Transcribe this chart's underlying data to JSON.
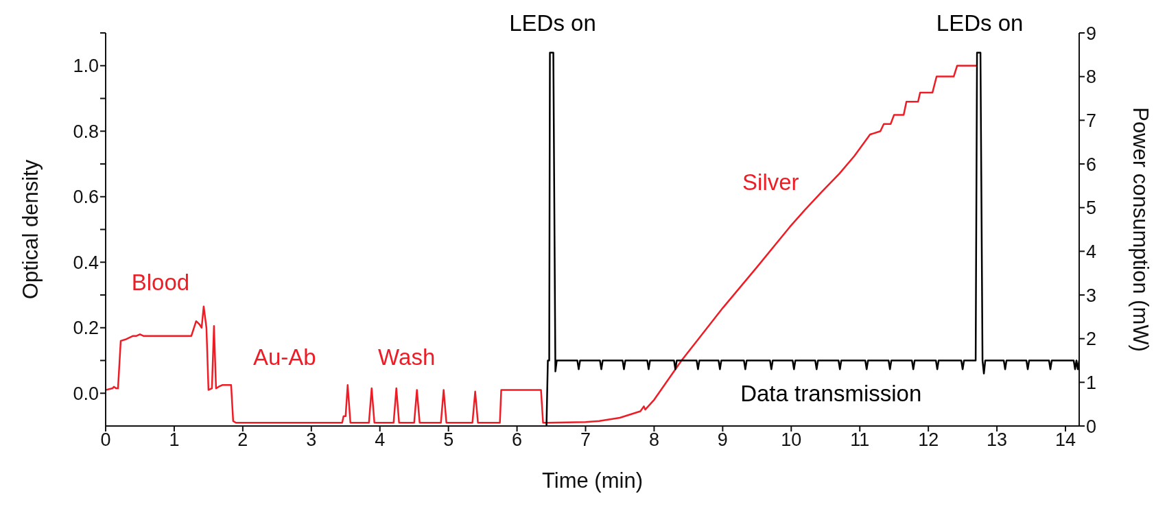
{
  "chart_data": {
    "type": "line",
    "xlabel": "Time (min)",
    "ylabel": "Optical density",
    "y2label": "Power consumption (mW)",
    "xlim": [
      0,
      14.2
    ],
    "xticks": [
      0,
      1,
      2,
      3,
      4,
      5,
      6,
      7,
      8,
      9,
      10,
      11,
      12,
      13,
      14
    ],
    "ylim": [
      -0.1,
      1.1
    ],
    "yticks": [
      {
        "value": 0,
        "label": "0.0"
      },
      {
        "value": 0.1,
        "label": null
      },
      0.2,
      {
        "value": 0.3,
        "label": null
      },
      0.4,
      {
        "value": 0.5,
        "label": null
      },
      0.6,
      {
        "value": 0.7,
        "label": null
      },
      0.8,
      {
        "value": 0.9,
        "label": null
      },
      {
        "value": 1,
        "label": "1.0"
      },
      {
        "value": 1.1,
        "label": null
      }
    ],
    "y2lim": [
      0,
      9
    ],
    "y2ticks": [
      0,
      1,
      2,
      3,
      4,
      5,
      6,
      7,
      8,
      9
    ],
    "series": [
      {
        "color": "#ee1c25",
        "x": [
          0,
          0.1,
          0.12,
          0.15,
          0.18,
          0.22,
          0.3,
          0.4,
          0.45,
          0.5,
          0.55,
          1.2,
          1.25,
          1.32,
          1.37,
          1.4,
          1.43,
          1.47,
          1.5,
          1.55,
          1.58,
          1.61,
          1.65,
          1.7,
          1.83,
          1.86,
          1.9,
          3.45,
          3.47,
          3.5,
          3.53,
          3.57,
          3.84,
          3.88,
          3.92,
          4.2,
          4.24,
          4.28,
          4.5,
          4.54,
          4.58,
          4.89,
          4.93,
          4.97,
          5.35,
          5.39,
          5.43,
          5.75,
          5.77,
          6.35,
          6.38,
          6.45,
          7,
          7.2,
          7.5,
          7.8,
          7.85,
          7.87,
          8,
          8.4,
          9,
          9.5,
          9.98,
          10.2,
          10.45,
          10.7,
          10.92,
          11.15,
          11.3,
          11.35,
          11.45,
          11.5,
          11.64,
          11.68,
          11.85,
          11.88,
          12.06,
          12.12,
          12.37,
          12.42,
          12.7
        ],
        "values": [
          0.01,
          0.015,
          0.02,
          0.015,
          0.015,
          0.16,
          0.165,
          0.175,
          0.175,
          0.18,
          0.175,
          0.175,
          0.175,
          0.22,
          0.21,
          0.2,
          0.265,
          0.2,
          0.01,
          0.015,
          0.205,
          0.015,
          0.02,
          0.025,
          0.025,
          -0.085,
          -0.09,
          -0.09,
          -0.07,
          -0.07,
          0.025,
          -0.09,
          -0.09,
          0.015,
          -0.09,
          -0.09,
          0.015,
          -0.09,
          -0.09,
          0.01,
          -0.09,
          -0.09,
          0.01,
          -0.09,
          -0.09,
          0.005,
          -0.09,
          -0.09,
          0.01,
          0.01,
          -0.09,
          -0.09,
          -0.088,
          -0.085,
          -0.075,
          -0.055,
          -0.04,
          -0.05,
          -0.02,
          0.1,
          0.26,
          0.385,
          0.508,
          0.56,
          0.616,
          0.67,
          0.724,
          0.79,
          0.8,
          0.822,
          0.822,
          0.85,
          0.85,
          0.89,
          0.89,
          0.918,
          0.918,
          0.967,
          0.967,
          1.0,
          1.0
        ]
      },
      {
        "color": "#000000",
        "axis": "y2",
        "x": [
          6.43,
          6.45,
          6.47,
          6.48,
          6.53,
          6.56,
          6.58,
          6.88,
          6.9,
          6.92,
          7.21,
          7.23,
          7.25,
          7.54,
          7.56,
          7.58,
          7.9,
          7.92,
          7.94,
          8.29,
          8.31,
          8.33,
          8.62,
          8.64,
          8.66,
          8.94,
          8.96,
          8.98,
          9.31,
          9.33,
          9.35,
          9.69,
          9.71,
          9.73,
          10.02,
          10.04,
          10.06,
          10.35,
          10.37,
          10.39,
          10.69,
          10.71,
          10.73,
          11.08,
          11.1,
          11.12,
          11.42,
          11.44,
          11.46,
          11.76,
          11.78,
          11.8,
          12.11,
          12.13,
          12.15,
          12.48,
          12.5,
          12.52,
          12.69,
          12.71,
          12.76,
          12.79,
          12.81,
          12.83,
          13.1,
          13.12,
          13.14,
          13.43,
          13.45,
          13.47,
          13.76,
          13.78,
          13.8,
          14.12,
          14.14,
          14.16,
          14.18,
          14.2
        ],
        "values": [
          0,
          1.5,
          1.5,
          8.55,
          8.55,
          1.25,
          1.5,
          1.5,
          1.3,
          1.5,
          1.5,
          1.3,
          1.5,
          1.5,
          1.3,
          1.5,
          1.5,
          1.3,
          1.5,
          1.5,
          1.3,
          1.5,
          1.5,
          1.3,
          1.5,
          1.5,
          1.3,
          1.5,
          1.5,
          1.3,
          1.5,
          1.5,
          1.3,
          1.5,
          1.5,
          1.3,
          1.5,
          1.5,
          1.3,
          1.5,
          1.5,
          1.3,
          1.5,
          1.5,
          1.3,
          1.5,
          1.5,
          1.3,
          1.5,
          1.5,
          1.3,
          1.5,
          1.5,
          1.3,
          1.5,
          1.5,
          1.3,
          1.5,
          1.5,
          8.55,
          8.55,
          1.5,
          1.2,
          1.5,
          1.5,
          1.3,
          1.5,
          1.5,
          1.3,
          1.5,
          1.5,
          1.3,
          1.5,
          1.5,
          1.3,
          1.5,
          1.3,
          1.5
        ]
      }
    ],
    "annotations": [
      "Blood",
      "Au-Ab",
      "Wash",
      "Silver",
      "LEDs on",
      "LEDs on",
      "Data transmission"
    ]
  }
}
